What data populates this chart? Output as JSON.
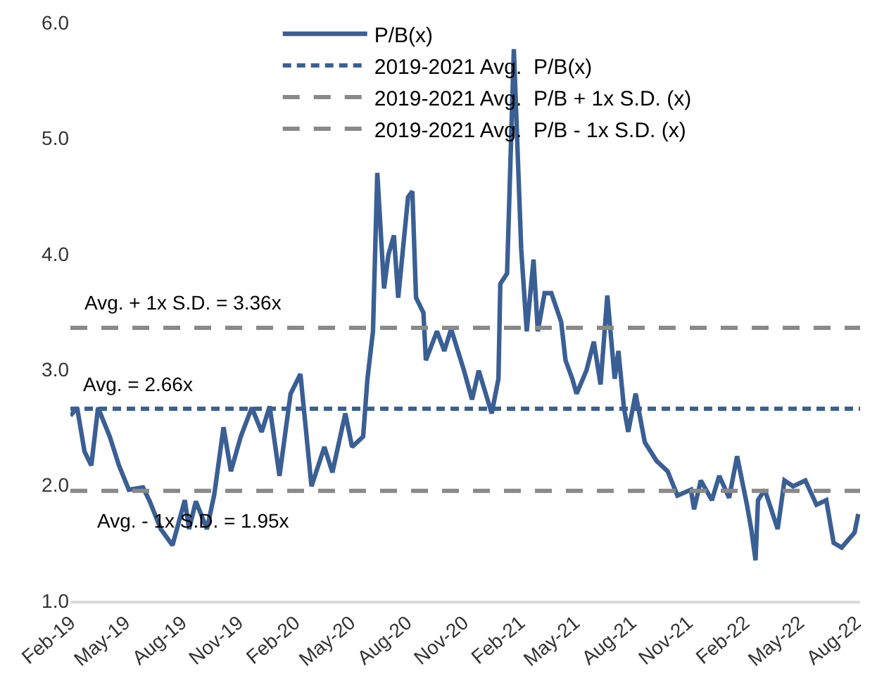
{
  "chart_data": {
    "type": "line",
    "x": [
      "2019-02-01",
      "2019-02-12",
      "2019-02-24",
      "2019-03-07",
      "2019-03-18",
      "2019-04-06",
      "2019-04-21",
      "2019-05-07",
      "2019-05-30",
      "2019-06-10",
      "2019-06-28",
      "2019-07-17",
      "2019-08-06",
      "2019-08-13",
      "2019-08-24",
      "2019-09-11",
      "2019-09-23",
      "2019-10-08",
      "2019-10-20",
      "2019-11-05",
      "2019-11-23",
      "2019-12-09",
      "2019-12-22",
      "2020-01-07",
      "2020-01-25",
      "2020-02-10",
      "2020-02-28",
      "2020-03-20",
      "2020-04-02",
      "2020-04-23",
      "2020-05-04",
      "2020-05-22",
      "2020-05-29",
      "2020-06-07",
      "2020-06-14",
      "2020-06-25",
      "2020-07-02",
      "2020-07-11",
      "2020-07-18",
      "2020-08-03",
      "2020-08-10",
      "2020-08-16",
      "2020-08-28",
      "2020-09-01",
      "2020-09-19",
      "2020-10-01",
      "2020-10-12",
      "2020-11-02",
      "2020-11-15",
      "2020-11-26",
      "2020-12-17",
      "2020-12-28",
      "2020-12-31",
      "2021-01-11",
      "2021-01-22",
      "2021-02-03",
      "2021-02-12",
      "2021-02-23",
      "2021-03-02",
      "2021-03-13",
      "2021-03-24",
      "2021-04-09",
      "2021-04-16",
      "2021-04-27",
      "2021-05-04",
      "2021-05-20",
      "2021-06-01",
      "2021-06-12",
      "2021-06-23",
      "2021-07-05",
      "2021-07-11",
      "2021-07-20",
      "2021-07-27",
      "2021-08-08",
      "2021-08-23",
      "2021-09-11",
      "2021-09-29",
      "2021-10-15",
      "2021-11-06",
      "2021-11-11",
      "2021-11-22",
      "2021-12-10",
      "2021-12-22",
      "2022-01-07",
      "2022-01-20",
      "2022-02-05",
      "2022-02-12",
      "2022-02-19",
      "2022-02-23",
      "2022-03-06",
      "2022-03-27",
      "2022-04-07",
      "2022-04-21",
      "2022-05-11",
      "2022-05-29",
      "2022-06-14",
      "2022-06-26",
      "2022-07-09",
      "2022-07-30",
      "2022-08-05"
    ],
    "series": [
      {
        "name": "P/B(x)",
        "color": "#3a5f94",
        "values": [
          2.6,
          2.67,
          2.29,
          2.17,
          2.67,
          2.42,
          2.17,
          1.96,
          1.98,
          1.86,
          1.62,
          1.48,
          1.87,
          1.62,
          1.86,
          1.62,
          1.92,
          2.5,
          2.12,
          2.42,
          2.67,
          2.46,
          2.68,
          2.08,
          2.79,
          2.96,
          1.99,
          2.33,
          2.11,
          2.62,
          2.33,
          2.42,
          2.92,
          3.33,
          4.7,
          3.7,
          3.99,
          4.16,
          3.62,
          4.49,
          4.54,
          3.62,
          3.49,
          3.08,
          3.33,
          3.16,
          3.35,
          2.99,
          2.74,
          2.99,
          2.62,
          2.92,
          3.74,
          3.83,
          5.77,
          4.04,
          3.33,
          3.95,
          3.33,
          3.66,
          3.66,
          3.41,
          3.08,
          2.92,
          2.79,
          2.99,
          3.24,
          2.87,
          3.64,
          2.92,
          3.16,
          2.67,
          2.46,
          2.79,
          2.37,
          2.21,
          2.12,
          1.91,
          1.96,
          1.79,
          2.04,
          1.87,
          2.08,
          1.89,
          2.25,
          1.83,
          1.62,
          1.35,
          1.87,
          1.96,
          1.62,
          2.04,
          1.99,
          2.04,
          1.83,
          1.87,
          1.5,
          1.46,
          1.59,
          1.75
        ]
      }
    ],
    "ref_lines": [
      {
        "axis": "y",
        "value": 2.66,
        "label": "2019-2021 Avg.  P/B(x)",
        "color": "#3a5f94",
        "line_style": "dotted"
      },
      {
        "axis": "y",
        "value": 3.36,
        "label": "2019-2021 Avg.  P/B + 1x S.D. (x)",
        "color": "#898989",
        "line_style": "dashed"
      },
      {
        "axis": "y",
        "value": 1.95,
        "label": "2019-2021 Avg.  P/B - 1x S.D. (x)",
        "color": "#898989",
        "line_style": "dashed"
      }
    ],
    "annotations": [
      "Avg. + 1x S.D. = 3.36x",
      "Avg. = 2.66x",
      "Avg. - 1x S.D. = 1.95x"
    ],
    "xlim": [
      "2019-02-01",
      "2022-08-08"
    ],
    "xticks": [
      {
        "value": "2019-02-01",
        "label": "Feb-19"
      },
      {
        "value": "2019-05-01",
        "label": "May-19"
      },
      {
        "value": "2019-08-01",
        "label": "Aug-19"
      },
      {
        "value": "2019-11-01",
        "label": "Nov-19"
      },
      {
        "value": "2020-02-01",
        "label": "Feb-20"
      },
      {
        "value": "2020-05-01",
        "label": "May-20"
      },
      {
        "value": "2020-08-01",
        "label": "Aug-20"
      },
      {
        "value": "2020-11-01",
        "label": "Nov-20"
      },
      {
        "value": "2021-02-01",
        "label": "Feb-21"
      },
      {
        "value": "2021-05-01",
        "label": "May-21"
      },
      {
        "value": "2021-08-01",
        "label": "Aug-21"
      },
      {
        "value": "2021-11-01",
        "label": "Nov-21"
      },
      {
        "value": "2022-02-01",
        "label": "Feb-22"
      },
      {
        "value": "2022-05-01",
        "label": "May-22"
      },
      {
        "value": "2022-08-01",
        "label": "Aug-22"
      }
    ],
    "ylim": [
      1,
      6
    ],
    "yticks": [
      {
        "value": 1,
        "label": "1.0"
      },
      {
        "value": 2,
        "label": "2.0"
      },
      {
        "value": 3,
        "label": "3.0"
      },
      {
        "value": 4,
        "label": "4.0"
      },
      {
        "value": 5,
        "label": "5.0"
      },
      {
        "value": 6,
        "label": "6.0"
      }
    ],
    "legend": "top",
    "marker": "none",
    "line_style": "solid"
  }
}
